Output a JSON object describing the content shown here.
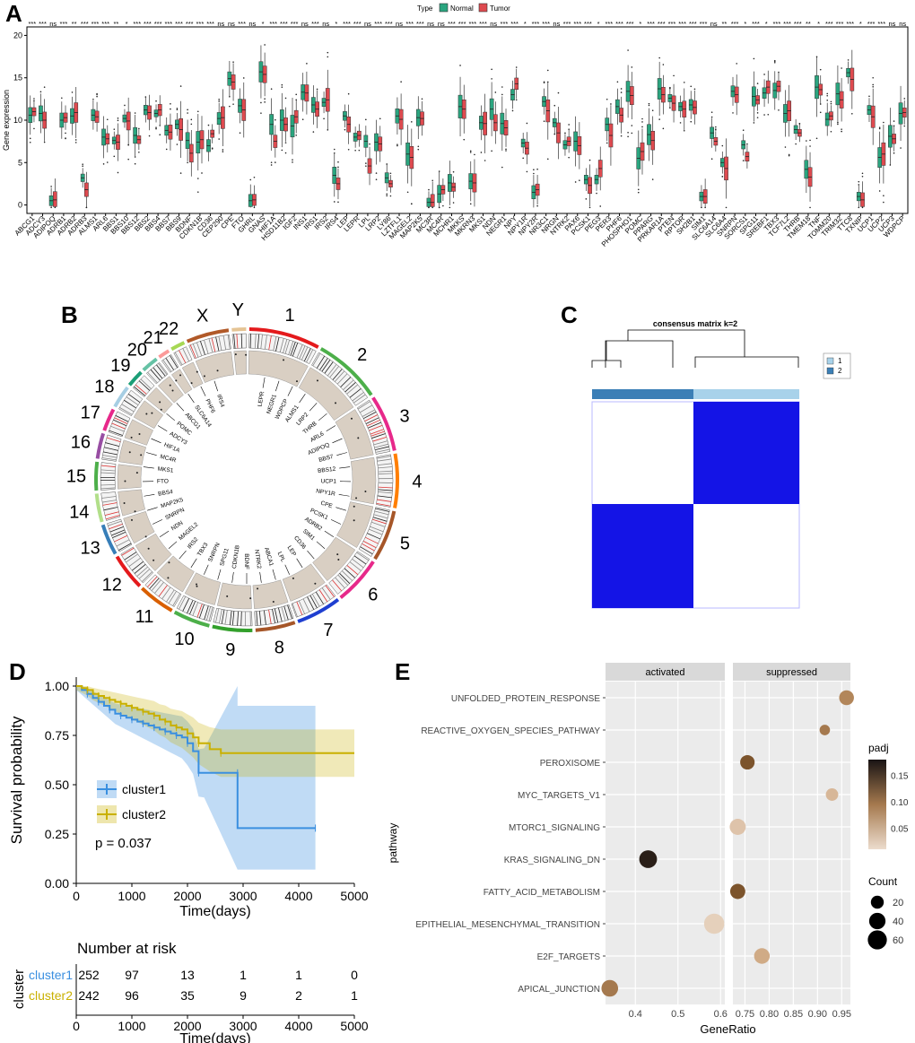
{
  "panels": {
    "A": "A",
    "B": "B",
    "C": "C",
    "D": "D",
    "E": "E"
  },
  "panelA": {
    "chart_data": {
      "type": "box",
      "ylabel": "Gene expression",
      "ylim": [
        -1,
        21
      ],
      "yticks": [
        0,
        5,
        10,
        15,
        20
      ],
      "legend": {
        "title": "Type",
        "items": [
          {
            "name": "Normal",
            "color": "#2aa57f"
          },
          {
            "name": "Tumor",
            "color": "#de4a4f"
          }
        ]
      },
      "genes": [
        "ABCG1",
        "ADCY3",
        "ADIPOQ",
        "ADRB1",
        "ADRB2",
        "ADRB3",
        "ALMS1",
        "ARL6",
        "BBS1",
        "BBS10",
        "BBS12",
        "BBS2",
        "BBS4",
        "BBS7",
        "BBS9",
        "BDNF",
        "CDKN1B",
        "CD36",
        "CEP290",
        "CPE",
        "FTO",
        "GHRL",
        "GNAS",
        "HIF1A",
        "HSD11B2",
        "IGF2",
        "INS1",
        "IRS1",
        "IRS2",
        "IRS4",
        "LEP",
        "LEPR",
        "LPL",
        "LRP2",
        "LY86",
        "LZTFL1",
        "MAGEL2",
        "MAP2K5",
        "MC3R",
        "MC4R",
        "MCHR1",
        "MKKS",
        "MKRN3",
        "MKS1",
        "NDN",
        "NEGR1",
        "NPY",
        "NPY1R",
        "NPY2R",
        "NR3C1",
        "NRGN",
        "NTRK2",
        "PAX6",
        "PCSK1",
        "PEG3",
        "PER3",
        "PHF6",
        "PHOSPHO1",
        "POMC",
        "PPARG",
        "PRKAR1A",
        "PTEN",
        "RPTOR",
        "SH2B1",
        "SIM1",
        "SLC6A14",
        "SLC6A4",
        "SNRPN",
        "SORCS1",
        "SPG11",
        "SREBF1",
        "TBX3",
        "TCF7L2",
        "THRB",
        "TMEM18",
        "TNF",
        "TOMM20",
        "TRIM32",
        "TTC8",
        "TXNIP",
        "UCP1",
        "UCP2",
        "UCP3",
        "WDPCP"
      ],
      "normal_median": [
        10.6,
        10.8,
        0.5,
        10.0,
        10.5,
        3.2,
        10.6,
        8.0,
        7.6,
        10.2,
        8.2,
        11.2,
        10.8,
        8.8,
        9.5,
        7.6,
        7.4,
        7.0,
        10.2,
        14.9,
        11.7,
        0.5,
        15.7,
        9.5,
        10.0,
        9.3,
        13.3,
        11.8,
        12.1,
        3.5,
        10.5,
        8.0,
        7.5,
        7.4,
        3.2,
        10.5,
        6.0,
        10.3,
        0.3,
        1.3,
        2.6,
        11.6,
        2.8,
        9.7,
        11.3,
        9.6,
        13.0,
        7.3,
        1.5,
        12.2,
        9.7,
        7.1,
        7.5,
        3.0,
        3.0,
        9.5,
        11.6,
        13.4,
        5.5,
        8.3,
        13.7,
        12.6,
        11.6,
        11.8,
        1.0,
        8.5,
        5.0,
        13.4,
        7.1,
        12.8,
        13.2,
        13.5,
        10.8,
        8.9,
        4.2,
        13.9,
        10.1,
        13.1,
        15.6,
        1.0,
        11.2,
        5.6,
        8.1,
        10.8
      ],
      "tumor_median": [
        11.0,
        10.0,
        0.6,
        10.3,
        10.9,
        1.8,
        10.4,
        7.8,
        7.4,
        9.9,
        7.7,
        10.9,
        11.2,
        8.6,
        8.9,
        6.1,
        7.7,
        8.4,
        10.3,
        14.5,
        11.2,
        0.6,
        15.4,
        7.5,
        9.5,
        10.4,
        13.2,
        11.3,
        12.4,
        2.5,
        9.5,
        8.2,
        4.6,
        7.2,
        2.5,
        10.1,
        5.6,
        10.2,
        0.3,
        1.8,
        2.1,
        11.3,
        2.6,
        9.6,
        9.7,
        9.1,
        14.3,
        6.7,
        1.8,
        11.1,
        8.5,
        7.5,
        7.0,
        2.3,
        4.3,
        8.2,
        10.6,
        12.9,
        6.3,
        7.6,
        13.0,
        12.0,
        11.3,
        11.5,
        1.0,
        7.5,
        4.3,
        13.0,
        5.7,
        12.4,
        13.9,
        14.0,
        11.1,
        8.5,
        3.3,
        13.6,
        10.5,
        12.4,
        14.8,
        0.6,
        10.4,
        6.0,
        7.8,
        10.9
      ],
      "significance": [
        "***",
        "***",
        "ns",
        "***",
        "**",
        "***",
        "***",
        "***",
        "**",
        "*",
        "***",
        "***",
        "***",
        "***",
        "***",
        "***",
        "***",
        "***",
        "ns",
        "ns",
        "***",
        "ns",
        "*",
        "***",
        "***",
        "***",
        "ns",
        "***",
        "ns",
        "*",
        "***",
        "***",
        "ns",
        "***",
        "***",
        "ns",
        "***",
        "***",
        "ns",
        "ns",
        "***",
        "***",
        "***",
        "***",
        "ns",
        "***",
        "***",
        "*",
        "***",
        "***",
        "ns",
        "***",
        "***",
        "***",
        "*",
        "***",
        "***",
        "***",
        "*",
        "***",
        "***",
        "***",
        "***",
        "***",
        "***",
        "ns",
        "**",
        "***",
        "*",
        "***",
        "*",
        "***",
        "***",
        "***",
        "**",
        "*",
        "***",
        "***",
        "***",
        "*",
        "***",
        "***",
        "ns",
        "ns"
      ]
    }
  },
  "panelB": {
    "chromosomes": [
      "1",
      "2",
      "3",
      "4",
      "5",
      "6",
      "7",
      "8",
      "9",
      "10",
      "11",
      "12",
      "13",
      "14",
      "15",
      "16",
      "17",
      "18",
      "19",
      "20",
      "21",
      "22",
      "X",
      "Y"
    ],
    "chrom_colors": [
      "#e41a1c",
      "#4daf4a",
      "#e7298a",
      "#ff7f00",
      "#a65628",
      "#e7298a",
      "#1f3fd0",
      "#a65628",
      "#33a02c",
      "#4daf4a",
      "#d95f02",
      "#e41a1c",
      "#377eb8",
      "#b2df8a",
      "#4daf4a",
      "#984ea3",
      "#e7298a",
      "#a6cee3",
      "#1b9e77",
      "#66c2a5",
      "#fb9a99",
      "#a6d854",
      "#b15928",
      "#e5c494"
    ],
    "gene_labels": [
      "LEPR",
      "NEGR1",
      "WDPCP",
      "ALMS1",
      "LRP2",
      "THRB",
      "ARL6",
      "ADIPOQ",
      "BBS7",
      "BBS12",
      "UCP1",
      "NPY1R",
      "CPE",
      "PCSK1",
      "ADRB2",
      "SIM1",
      "CD36",
      "LEP",
      "LPL",
      "ABCA1",
      "NTRK2",
      "BDNF",
      "CDKN1B",
      "SPG11",
      "SNRPN",
      "TBX3",
      "IRS2",
      "MAGEL2",
      "NDN",
      "SNRPN",
      "MAP2K5",
      "BBS4",
      "FTO",
      "MKS1",
      "MC4R",
      "HIF1A",
      "ADCY3",
      "POMC",
      "ABCG1",
      "SLC6A14",
      "PHF6",
      "IRS4"
    ]
  },
  "panelC": {
    "title": "consensus matrix k=2",
    "legend": [
      {
        "label": "1",
        "color": "#a8d2ea"
      },
      {
        "label": "2",
        "color": "#3b7fb6"
      }
    ],
    "matrix_color": "#1414e6"
  },
  "panelD": {
    "chart_data": {
      "type": "line",
      "xlabel": "Time(days)",
      "ylabel": "Survival probability",
      "xlim": [
        0,
        5000
      ],
      "ylim": [
        0,
        1
      ],
      "xticks": [
        0,
        1000,
        2000,
        3000,
        4000,
        5000
      ],
      "yticks": [
        0.0,
        0.25,
        0.5,
        0.75,
        1.0
      ],
      "pvalue": "p = 0.037",
      "series": [
        {
          "name": "cluster1",
          "color": "#3a8fe0",
          "x": [
            0,
            100,
            200,
            300,
            400,
            500,
            600,
            700,
            800,
            900,
            1000,
            1100,
            1200,
            1300,
            1400,
            1500,
            1600,
            1700,
            1800,
            1900,
            2000,
            2100,
            2200,
            2300,
            2900,
            2900,
            4300
          ],
          "y": [
            1.0,
            0.98,
            0.96,
            0.94,
            0.92,
            0.9,
            0.88,
            0.86,
            0.85,
            0.84,
            0.83,
            0.82,
            0.81,
            0.8,
            0.79,
            0.78,
            0.77,
            0.76,
            0.75,
            0.74,
            0.71,
            0.67,
            0.56,
            0.56,
            0.56,
            0.28,
            0.28
          ]
        },
        {
          "name": "cluster2",
          "color": "#c9b000",
          "x": [
            0,
            100,
            200,
            300,
            400,
            500,
            600,
            700,
            800,
            900,
            1000,
            1100,
            1200,
            1300,
            1400,
            1500,
            1600,
            1700,
            1800,
            1900,
            2000,
            2100,
            2200,
            2400,
            2600,
            5000
          ],
          "y": [
            1.0,
            0.99,
            0.98,
            0.96,
            0.95,
            0.94,
            0.93,
            0.92,
            0.91,
            0.9,
            0.89,
            0.88,
            0.87,
            0.86,
            0.85,
            0.83,
            0.82,
            0.8,
            0.79,
            0.78,
            0.76,
            0.74,
            0.71,
            0.68,
            0.66,
            0.66
          ]
        }
      ],
      "risk_table": {
        "title": "Number at risk",
        "ylabel": "cluster",
        "xlabel": "Time(days)",
        "rows": [
          {
            "name": "cluster1",
            "color": "#3a8fe0",
            "values": [
              "252",
              "97",
              "13",
              "1",
              "1",
              "0"
            ]
          },
          {
            "name": "cluster2",
            "color": "#c9b000",
            "values": [
              "242",
              "96",
              "35",
              "9",
              "2",
              "1"
            ]
          }
        ]
      }
    }
  },
  "panelE": {
    "chart_data": {
      "type": "scatter",
      "xlabel": "GeneRatio",
      "ylabel": "pathway",
      "facets": [
        "activated",
        "suppressed"
      ],
      "pathways": [
        "UNFOLDED_PROTEIN_RESPONSE",
        "REACTIVE_OXYGEN_SPECIES_PATHWAY",
        "PEROXISOME",
        "MYC_TARGETS_V1",
        "MTORC1_SIGNALING",
        "KRAS_SIGNALING_DN",
        "FATTY_ACID_METABOLISM",
        "EPITHELIAL_MESENCHYMAL_TRANSITION",
        "E2F_TARGETS",
        "APICAL_JUNCTION"
      ],
      "activated_ticks": [
        "0.4",
        "0.5",
        "0.6"
      ],
      "suppressed_ticks": [
        "0.75",
        "0.80",
        "0.85",
        "0.90",
        "0.95"
      ],
      "points": [
        {
          "pathway": "UNFOLDED_PROTEIN_RESPONSE",
          "facet": "suppressed",
          "ratio": 0.96,
          "count": 30,
          "padj": 0.08
        },
        {
          "pathway": "REACTIVE_OXYGEN_SPECIES_PATHWAY",
          "facet": "suppressed",
          "ratio": 0.915,
          "count": 10,
          "padj": 0.09
        },
        {
          "pathway": "PEROXISOME",
          "facet": "suppressed",
          "ratio": 0.755,
          "count": 28,
          "padj": 0.12
        },
        {
          "pathway": "MYC_TARGETS_V1",
          "facet": "suppressed",
          "ratio": 0.93,
          "count": 18,
          "padj": 0.04
        },
        {
          "pathway": "MTORC1_SIGNALING",
          "facet": "suppressed",
          "ratio": 0.735,
          "count": 38,
          "padj": 0.03
        },
        {
          "pathway": "KRAS_SIGNALING_DN",
          "facet": "activated",
          "ratio": 0.43,
          "count": 50,
          "padj": 0.17
        },
        {
          "pathway": "FATTY_ACID_METABOLISM",
          "facet": "suppressed",
          "ratio": 0.735,
          "count": 32,
          "padj": 0.12
        },
        {
          "pathway": "EPITHELIAL_MESENCHYMAL_TRANSITION",
          "facet": "activated",
          "ratio": 0.585,
          "count": 70,
          "padj": 0.02
        },
        {
          "pathway": "E2F_TARGETS",
          "facet": "suppressed",
          "ratio": 0.785,
          "count": 35,
          "padj": 0.05
        },
        {
          "pathway": "APICAL_JUNCTION",
          "facet": "activated",
          "ratio": 0.34,
          "count": 42,
          "padj": 0.09
        }
      ],
      "padj_legend": {
        "title": "padj",
        "ticks": [
          "0.15",
          "0.10",
          "0.05"
        ]
      },
      "count_legend": {
        "title": "Count",
        "ticks": [
          "20",
          "40",
          "60"
        ]
      }
    }
  }
}
